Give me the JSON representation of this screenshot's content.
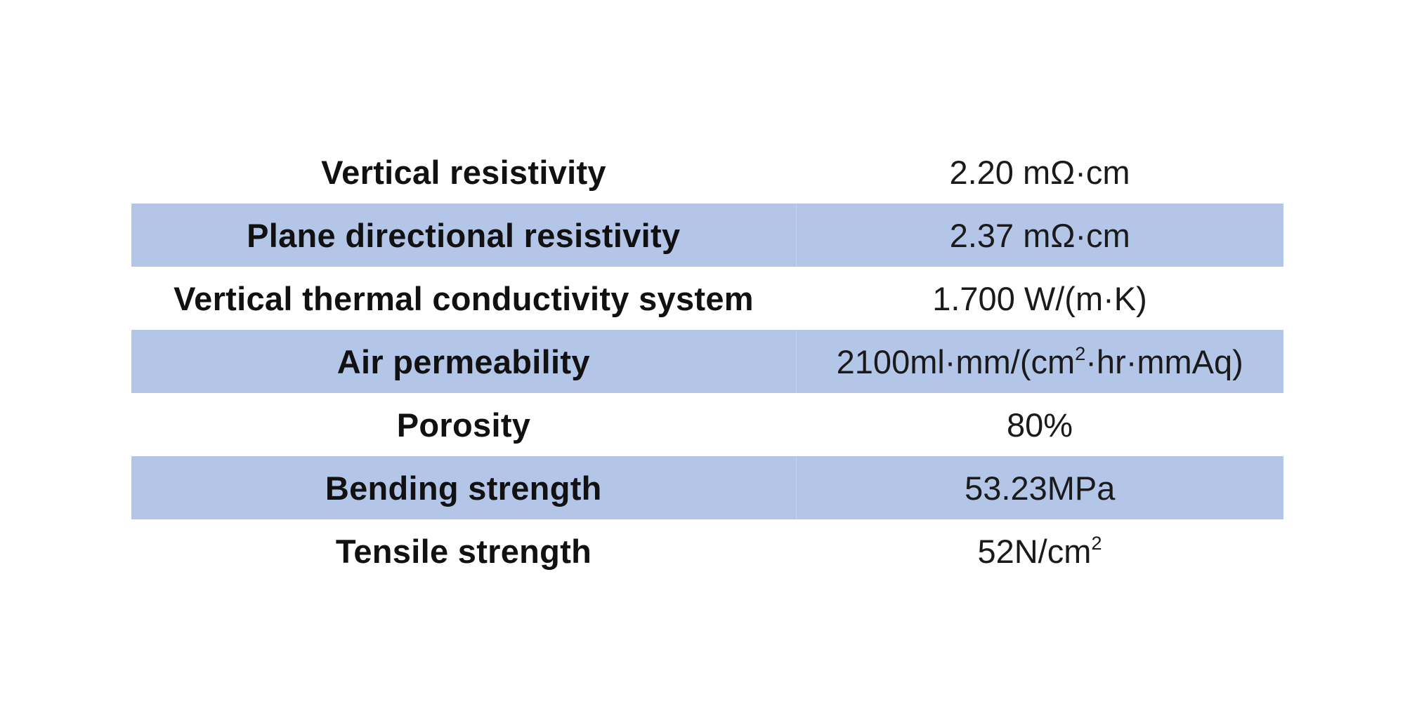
{
  "rows": [
    {
      "property": "Vertical resistivity",
      "value": "2.20 mΩ·cm"
    },
    {
      "property": "Plane directional resistivity",
      "value": "2.37 mΩ·cm"
    },
    {
      "property": "Vertical thermal conductivity system",
      "value": "1.700 W/(m·K)"
    },
    {
      "property": "Air permeability",
      "value_base": "2100ml·mm/(cm",
      "value_sup": "2",
      "value_tail": "·hr·mmAq)"
    },
    {
      "property": "Porosity",
      "value": "80%"
    },
    {
      "property": "Bending strength",
      "value": "53.23MPa"
    },
    {
      "property": "Tensile strength",
      "value_base": "52N/cm",
      "value_sup": "2",
      "value_tail": ""
    }
  ],
  "colors": {
    "row_shade": "#b4c6e7",
    "text": "#111111",
    "background": "#ffffff"
  }
}
